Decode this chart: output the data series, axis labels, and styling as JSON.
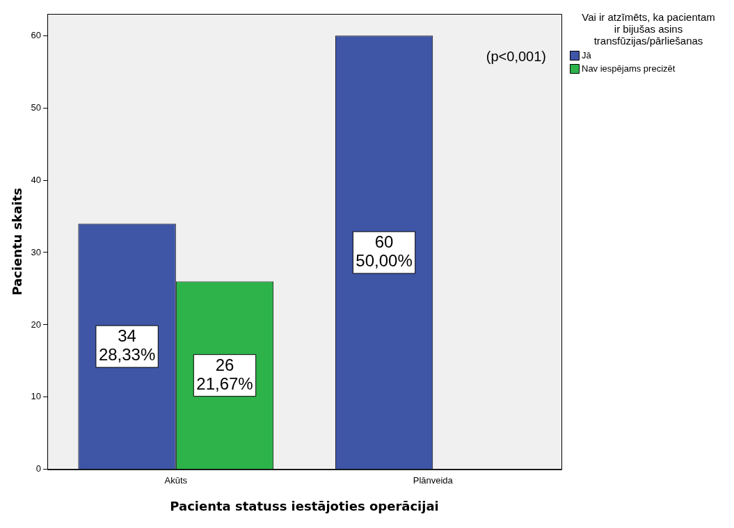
{
  "chart_data": {
    "type": "bar",
    "xlabel": "Pacienta statuss iestājoties operācijai",
    "ylabel": "Pacientu skaits",
    "legend_title": "Vai ir atzīmēts, ka pacientam ir bijušas asins transfūzijas/pārliešanas",
    "categories": [
      "Akūts",
      "Plānveida"
    ],
    "series": [
      {
        "name": "Jā",
        "color": "#3f55a6",
        "values": [
          34,
          60
        ],
        "value_labels": [
          "34\n28,33%",
          "60\n50,00%"
        ]
      },
      {
        "name": "Nav iespējams precizēt",
        "color": "#2eb34a",
        "values": [
          26,
          null
        ],
        "value_labels": [
          "26\n21,67%",
          null
        ]
      }
    ],
    "ylim": [
      0,
      63
    ],
    "yticks": [
      0,
      10,
      20,
      30,
      40,
      50,
      60
    ],
    "grid": false,
    "legend": "right",
    "annotations": [
      "(p<0,001)"
    ]
  }
}
